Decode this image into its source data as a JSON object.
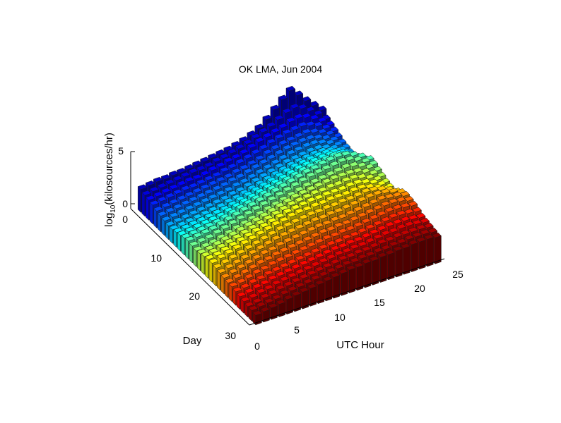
{
  "chart_data": {
    "type": "bar3",
    "title": "OK LMA, Jun 2004",
    "xlabel": "UTC Hour",
    "ylabel": "Day",
    "zlabel": "log10(kilosources/hr)",
    "zlabel_base": "log",
    "zlabel_sub": "10",
    "zlabel_rest": "(kilosources/hr)",
    "x_ticks": [
      "0",
      "5",
      "10",
      "15",
      "20",
      "25"
    ],
    "y_ticks": [
      "0",
      "10",
      "20",
      "30"
    ],
    "z_ticks": [
      "0",
      "5"
    ],
    "xlim": [
      0,
      25
    ],
    "ylim": [
      0,
      30
    ],
    "zlim": [
      0,
      5
    ],
    "hours": [
      1,
      2,
      3,
      4,
      5,
      6,
      7,
      8,
      9,
      10,
      11,
      12,
      13,
      14,
      15,
      16,
      17,
      18,
      19,
      20,
      21,
      22,
      23,
      24
    ],
    "days": [
      1,
      2,
      3,
      4,
      5,
      6,
      7,
      8,
      9,
      10,
      11,
      12,
      13,
      14,
      15,
      16,
      17,
      18,
      19,
      20,
      21,
      22,
      23,
      24,
      25,
      26,
      27,
      28,
      29,
      30
    ],
    "values": [
      [
        2.2,
        2.3,
        2.4,
        2.4,
        2.5,
        2.5,
        2.6,
        2.7,
        2.8,
        2.9,
        3.0,
        3.1,
        3.3,
        3.5,
        3.8,
        4.2,
        4.8,
        5.5,
        6.2,
        6.8,
        6.1,
        5.3,
        4.6,
        3.9
      ],
      [
        2.0,
        2.1,
        2.2,
        2.3,
        2.4,
        2.5,
        2.6,
        2.6,
        2.7,
        2.9,
        3.0,
        3.2,
        3.4,
        3.6,
        3.9,
        4.2,
        4.5,
        4.9,
        5.3,
        5.5,
        5.2,
        4.7,
        4.1,
        3.4
      ],
      [
        1.9,
        2.0,
        2.1,
        2.2,
        2.3,
        2.4,
        2.4,
        2.5,
        2.7,
        2.8,
        3.0,
        3.1,
        3.3,
        3.6,
        3.9,
        4.1,
        4.3,
        4.5,
        4.8,
        4.9,
        4.7,
        4.3,
        3.8,
        3.2
      ],
      [
        1.8,
        1.9,
        2.0,
        2.1,
        2.2,
        2.2,
        2.3,
        2.4,
        2.5,
        2.7,
        2.8,
        3.0,
        3.2,
        3.4,
        3.6,
        3.9,
        4.1,
        4.3,
        4.4,
        4.5,
        4.3,
        4.0,
        3.5,
        3.0
      ],
      [
        1.6,
        1.7,
        1.8,
        1.9,
        2.0,
        2.1,
        2.2,
        2.3,
        2.4,
        2.5,
        2.7,
        2.8,
        3.0,
        3.2,
        3.5,
        3.7,
        3.9,
        4.0,
        4.1,
        4.2,
        4.0,
        3.7,
        3.3,
        2.8
      ],
      [
        1.5,
        1.6,
        1.7,
        1.8,
        1.9,
        2.0,
        2.1,
        2.2,
        2.3,
        2.5,
        2.6,
        2.8,
        3.0,
        3.2,
        3.4,
        3.6,
        3.8,
        3.9,
        4.0,
        4.0,
        3.8,
        3.5,
        3.1,
        2.6
      ],
      [
        1.4,
        1.5,
        1.6,
        1.7,
        1.8,
        1.9,
        2.0,
        2.1,
        2.2,
        2.4,
        2.5,
        2.7,
        2.9,
        3.1,
        3.3,
        3.5,
        3.7,
        3.8,
        3.9,
        3.9,
        3.7,
        3.4,
        3.0,
        2.5
      ],
      [
        1.3,
        1.4,
        1.5,
        1.6,
        1.7,
        1.8,
        1.9,
        2.0,
        2.2,
        2.3,
        2.5,
        2.7,
        2.9,
        3.1,
        3.3,
        3.5,
        3.6,
        3.7,
        3.8,
        3.8,
        3.6,
        3.3,
        2.9,
        2.4
      ],
      [
        1.3,
        1.4,
        1.5,
        1.6,
        1.7,
        1.8,
        1.9,
        2.1,
        2.2,
        2.4,
        2.6,
        2.8,
        3.0,
        3.2,
        3.4,
        3.6,
        3.7,
        3.8,
        3.9,
        3.9,
        3.7,
        3.4,
        3.0,
        2.5
      ],
      [
        1.4,
        1.5,
        1.6,
        1.7,
        1.8,
        1.9,
        2.0,
        2.2,
        2.4,
        2.6,
        2.8,
        3.0,
        3.2,
        3.4,
        3.6,
        3.8,
        3.9,
        4.0,
        4.1,
        4.1,
        3.9,
        3.6,
        3.2,
        2.7
      ],
      [
        1.5,
        1.6,
        1.7,
        1.8,
        1.9,
        2.0,
        2.2,
        2.4,
        2.6,
        2.8,
        3.0,
        3.2,
        3.4,
        3.6,
        3.8,
        4.0,
        4.1,
        4.2,
        4.3,
        4.3,
        4.1,
        3.8,
        3.4,
        2.9
      ],
      [
        1.6,
        1.7,
        1.8,
        1.9,
        2.0,
        2.2,
        2.4,
        2.6,
        2.8,
        3.0,
        3.2,
        3.4,
        3.6,
        3.8,
        4.0,
        4.2,
        4.3,
        4.4,
        4.5,
        4.6,
        4.4,
        4.1,
        3.7,
        3.2
      ],
      [
        1.7,
        1.8,
        1.9,
        2.0,
        2.2,
        2.4,
        2.6,
        2.8,
        3.0,
        3.2,
        3.4,
        3.6,
        3.8,
        4.0,
        4.2,
        4.4,
        4.5,
        4.7,
        4.8,
        4.9,
        4.8,
        4.5,
        4.1,
        3.6
      ],
      [
        1.6,
        1.7,
        1.8,
        2.0,
        2.2,
        2.4,
        2.6,
        2.8,
        3.0,
        3.2,
        3.4,
        3.6,
        3.8,
        4.0,
        4.2,
        4.4,
        4.5,
        4.6,
        4.7,
        4.8,
        4.7,
        4.4,
        4.0,
        3.5
      ],
      [
        1.5,
        1.6,
        1.7,
        1.9,
        2.1,
        2.3,
        2.5,
        2.7,
        2.9,
        3.1,
        3.3,
        3.5,
        3.7,
        3.9,
        4.1,
        4.2,
        4.3,
        4.4,
        4.5,
        4.6,
        4.5,
        4.2,
        3.8,
        3.3
      ],
      [
        1.6,
        1.7,
        1.9,
        2.1,
        2.3,
        2.5,
        2.7,
        2.9,
        3.1,
        3.3,
        3.5,
        3.7,
        3.9,
        4.0,
        4.1,
        4.2,
        4.3,
        4.4,
        4.4,
        4.4,
        4.3,
        4.0,
        3.6,
        3.1
      ],
      [
        1.7,
        1.8,
        2.0,
        2.2,
        2.4,
        2.6,
        2.8,
        3.0,
        3.2,
        3.4,
        3.6,
        3.8,
        3.9,
        4.0,
        4.1,
        4.1,
        4.2,
        4.2,
        4.3,
        4.3,
        4.1,
        3.8,
        3.4,
        2.9
      ],
      [
        1.8,
        1.9,
        2.1,
        2.3,
        2.5,
        2.7,
        2.9,
        3.1,
        3.3,
        3.5,
        3.7,
        3.8,
        3.9,
        4.0,
        4.0,
        4.1,
        4.1,
        4.1,
        4.2,
        4.2,
        4.0,
        3.7,
        3.3,
        2.8
      ],
      [
        1.8,
        2.0,
        2.2,
        2.4,
        2.6,
        2.8,
        3.0,
        3.2,
        3.4,
        3.5,
        3.7,
        3.8,
        3.8,
        3.9,
        3.9,
        4.0,
        4.0,
        4.0,
        4.1,
        4.1,
        3.9,
        3.6,
        3.2,
        2.7
      ],
      [
        1.7,
        1.9,
        2.1,
        2.3,
        2.5,
        2.7,
        2.9,
        3.1,
        3.3,
        3.4,
        3.5,
        3.6,
        3.7,
        3.7,
        3.8,
        3.8,
        3.9,
        3.9,
        4.0,
        4.1,
        4.0,
        3.8,
        3.5,
        3.1
      ],
      [
        1.6,
        1.8,
        2.0,
        2.2,
        2.4,
        2.6,
        2.8,
        3.0,
        3.1,
        3.2,
        3.3,
        3.4,
        3.5,
        3.5,
        3.6,
        3.6,
        3.7,
        3.8,
        3.9,
        4.0,
        4.0,
        3.9,
        3.7,
        3.4
      ],
      [
        1.5,
        1.7,
        1.9,
        2.1,
        2.3,
        2.5,
        2.6,
        2.8,
        2.9,
        3.0,
        3.1,
        3.2,
        3.3,
        3.3,
        3.4,
        3.4,
        3.5,
        3.6,
        3.7,
        3.8,
        3.9,
        3.8,
        3.7,
        3.5
      ],
      [
        1.4,
        1.6,
        1.8,
        2.0,
        2.2,
        2.3,
        2.5,
        2.6,
        2.7,
        2.8,
        2.9,
        3.0,
        3.1,
        3.1,
        3.2,
        3.2,
        3.3,
        3.4,
        3.5,
        3.6,
        3.7,
        3.7,
        3.6,
        3.4
      ],
      [
        1.4,
        1.5,
        1.7,
        1.9,
        2.0,
        2.2,
        2.3,
        2.4,
        2.5,
        2.6,
        2.7,
        2.8,
        2.9,
        2.9,
        3.0,
        3.0,
        3.1,
        3.2,
        3.3,
        3.4,
        3.5,
        3.5,
        3.4,
        3.3
      ],
      [
        1.3,
        1.4,
        1.6,
        1.7,
        1.9,
        2.0,
        2.1,
        2.2,
        2.3,
        2.4,
        2.5,
        2.6,
        2.7,
        2.7,
        2.8,
        2.8,
        2.9,
        3.0,
        3.1,
        3.2,
        3.3,
        3.3,
        3.2,
        3.1
      ],
      [
        1.2,
        1.3,
        1.5,
        1.6,
        1.8,
        1.9,
        2.0,
        2.1,
        2.2,
        2.3,
        2.4,
        2.5,
        2.6,
        2.6,
        2.7,
        2.7,
        2.8,
        2.9,
        3.0,
        3.1,
        3.1,
        3.1,
        3.0,
        2.9
      ],
      [
        1.1,
        1.2,
        1.4,
        1.5,
        1.7,
        1.8,
        1.9,
        2.0,
        2.1,
        2.2,
        2.3,
        2.4,
        2.5,
        2.5,
        2.6,
        2.6,
        2.7,
        2.8,
        2.9,
        2.9,
        3.0,
        3.0,
        2.9,
        2.8
      ],
      [
        1.0,
        1.1,
        1.3,
        1.4,
        1.6,
        1.7,
        1.8,
        1.9,
        2.0,
        2.1,
        2.2,
        2.3,
        2.4,
        2.4,
        2.5,
        2.5,
        2.6,
        2.7,
        2.7,
        2.8,
        2.8,
        2.8,
        2.8,
        2.7
      ],
      [
        1.0,
        1.1,
        1.2,
        1.3,
        1.5,
        1.6,
        1.7,
        1.8,
        1.9,
        2.0,
        2.1,
        2.2,
        2.3,
        2.3,
        2.4,
        2.4,
        2.5,
        2.5,
        2.6,
        2.6,
        2.7,
        2.7,
        2.7,
        2.6
      ],
      [
        0.9,
        1.0,
        1.1,
        1.2,
        1.4,
        1.5,
        1.6,
        1.7,
        1.8,
        1.9,
        2.0,
        2.1,
        2.2,
        2.2,
        2.3,
        2.3,
        2.4,
        2.4,
        2.5,
        2.5,
        2.6,
        2.6,
        2.6,
        2.5
      ]
    ],
    "colormap": "jet",
    "color_by": "day",
    "grid": false,
    "legend": "none"
  }
}
